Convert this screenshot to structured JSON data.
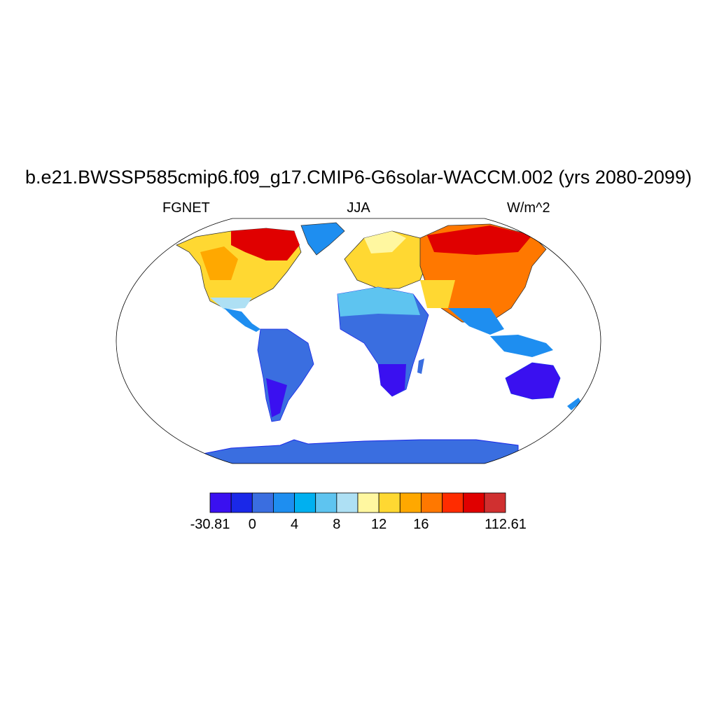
{
  "title": "b.e21.BWSSP585cmip6.f09_g17.CMIP6-G6solar-WACCM.002 (yrs 2080-2099)",
  "left_label": "FGNET",
  "center_label": "JJA",
  "right_label": "W/m^2",
  "colorbar": {
    "colors": [
      "#3a10f0",
      "#1a28e8",
      "#3a6ee0",
      "#1e8ef0",
      "#00b0f0",
      "#5ec4f0",
      "#aee0f4",
      "#fff7a0",
      "#ffd832",
      "#ffa800",
      "#ff7800",
      "#ff2c00",
      "#e00000",
      "#d03030"
    ],
    "labels": [
      {
        "text": "-30.81",
        "index": 0
      },
      {
        "text": "0",
        "index": 2
      },
      {
        "text": "4",
        "index": 4
      },
      {
        "text": "8",
        "index": 6
      },
      {
        "text": "12",
        "index": 8
      },
      {
        "text": "16",
        "index": 10
      },
      {
        "text": "112.61",
        "index": 14
      }
    ]
  }
}
